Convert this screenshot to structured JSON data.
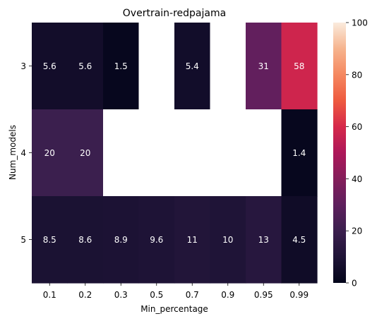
{
  "chart_data": {
    "type": "heatmap",
    "title": "Overtrain-redpajama",
    "xlabel": "Min_percentage",
    "ylabel": "Num_models",
    "x_categories": [
      "0.1",
      "0.2",
      "0.3",
      "0.5",
      "0.7",
      "0.9",
      "0.95",
      "0.99"
    ],
    "y_categories": [
      "3",
      "4",
      "5"
    ],
    "values": [
      [
        5.6,
        5.6,
        1.5,
        null,
        5.4,
        null,
        31,
        58
      ],
      [
        20,
        20,
        null,
        null,
        null,
        null,
        null,
        1.4
      ],
      [
        8.5,
        8.6,
        8.9,
        9.6,
        11,
        10,
        13,
        4.5
      ]
    ],
    "cell_labels": [
      [
        "5.6",
        "5.6",
        "1.5",
        "",
        "5.4",
        "",
        "31",
        "58"
      ],
      [
        "20",
        "20",
        "",
        "",
        "",
        "",
        "",
        "1.4"
      ],
      [
        "8.5",
        "8.6",
        "8.9",
        "9.6",
        "11",
        "10",
        "13",
        "4.5"
      ]
    ],
    "colorbar": {
      "range": [
        0,
        100
      ],
      "ticks": [
        "0",
        "20",
        "40",
        "60",
        "80",
        "100"
      ],
      "colormap": "rocket"
    },
    "missing_color": "#ffffff"
  }
}
